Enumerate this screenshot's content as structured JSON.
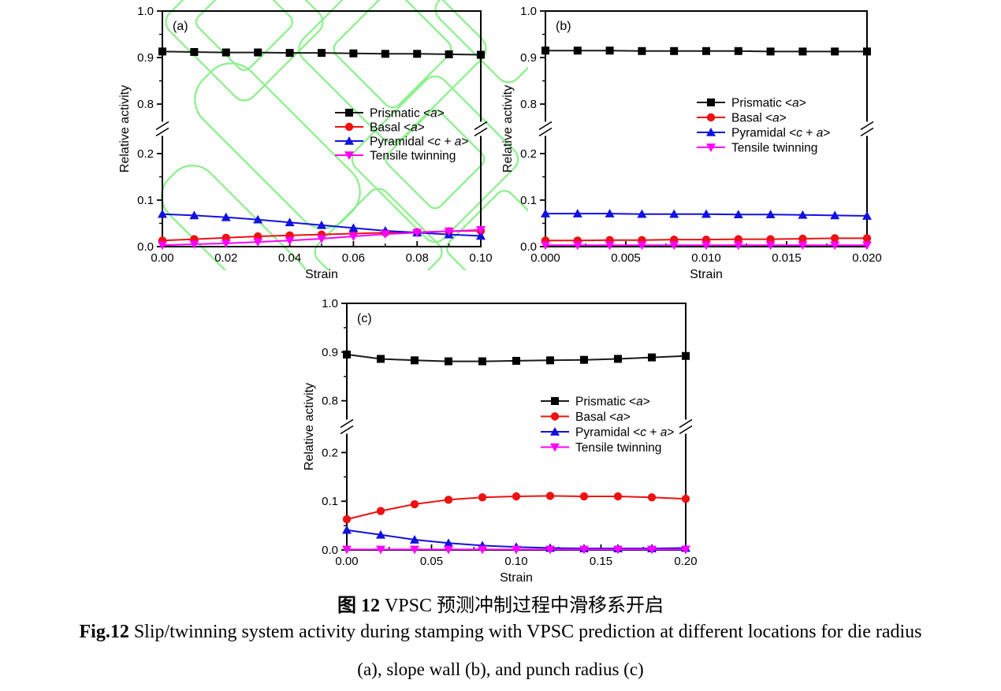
{
  "figure": {
    "caption_cn_bold": "图 12",
    "caption_cn_text": " VPSC 预测冲制过程中滑移系开启",
    "caption_en_bold": "Fig.12",
    "caption_en_text": " Slip/twinning system activity during stamping with VPSC prediction at different locations for die radius",
    "caption_en_line2": "(a), slope wall (b), and punch radius (c)"
  },
  "colors": {
    "axis": "#000000",
    "prismatic": "#1a1a1a",
    "basal": "#ee1111",
    "pyramidal": "#1111e0",
    "twinning": "#ff00ff",
    "watermark": "#8cee8c"
  },
  "chart_data": [
    {
      "id": "a",
      "type": "line",
      "panel_label": "(a)",
      "xlabel": "Strain",
      "ylabel": "Relative activity",
      "xlim": [
        0,
        0.1
      ],
      "axis_break": {
        "segments": [
          [
            0,
            0.2
          ],
          [
            0.8,
            1.0
          ]
        ]
      },
      "x_ticks": [
        {
          "v": 0.0,
          "label": "0.00"
        },
        {
          "v": 0.02,
          "label": "0.02"
        },
        {
          "v": 0.04,
          "label": "0.04"
        },
        {
          "v": 0.06,
          "label": "0.06"
        },
        {
          "v": 0.08,
          "label": "0.08"
        },
        {
          "v": 0.1,
          "label": "0.10"
        }
      ],
      "x_minor": [
        0.01,
        0.03,
        0.05,
        0.07,
        0.09
      ],
      "y_ticks": [
        {
          "v": 0.0,
          "label": "0.0"
        },
        {
          "v": 0.1,
          "label": "0.1"
        },
        {
          "v": 0.2,
          "label": "0.2"
        },
        {
          "v": 0.8,
          "label": "0.8"
        },
        {
          "v": 0.9,
          "label": "0.9"
        },
        {
          "v": 1.0,
          "label": "1.0"
        }
      ],
      "y_minor": [
        0.05,
        0.15,
        0.85,
        0.95
      ],
      "x": [
        0,
        0.01,
        0.02,
        0.03,
        0.04,
        0.05,
        0.06,
        0.07,
        0.08,
        0.09,
        0.1
      ],
      "series": [
        {
          "name": "Prismatic <a>",
          "marker": "square",
          "color": "#1a1a1a",
          "values": [
            0.913,
            0.912,
            0.911,
            0.911,
            0.91,
            0.91,
            0.909,
            0.908,
            0.908,
            0.907,
            0.906
          ]
        },
        {
          "name": "Basal <a>",
          "marker": "circle",
          "color": "#ee1111",
          "values": [
            0.013,
            0.016,
            0.019,
            0.022,
            0.024,
            0.026,
            0.028,
            0.03,
            0.031,
            0.033,
            0.034
          ]
        },
        {
          "name": "Pyramidal <c + a>",
          "marker": "triangle-up",
          "color": "#1111e0",
          "values": [
            0.07,
            0.067,
            0.063,
            0.058,
            0.052,
            0.046,
            0.04,
            0.034,
            0.03,
            0.026,
            0.023
          ]
        },
        {
          "name": "Tensile twinning",
          "marker": "triangle-down",
          "color": "#ff00ff",
          "values": [
            0.003,
            0.005,
            0.007,
            0.01,
            0.013,
            0.017,
            0.022,
            0.027,
            0.03,
            0.033,
            0.036
          ]
        }
      ]
    },
    {
      "id": "b",
      "type": "line",
      "panel_label": "(b)",
      "xlabel": "Strain",
      "ylabel": "Relative activity",
      "xlim": [
        0,
        0.02
      ],
      "axis_break": {
        "segments": [
          [
            0,
            0.2
          ],
          [
            0.8,
            1.0
          ]
        ]
      },
      "x_ticks": [
        {
          "v": 0.0,
          "label": "0.000"
        },
        {
          "v": 0.005,
          "label": "0.005"
        },
        {
          "v": 0.01,
          "label": "0.010"
        },
        {
          "v": 0.015,
          "label": "0.015"
        },
        {
          "v": 0.02,
          "label": "0.020"
        }
      ],
      "x_minor": [
        0.0025,
        0.0075,
        0.0125,
        0.0175
      ],
      "y_ticks": [
        {
          "v": 0.0,
          "label": "0.0"
        },
        {
          "v": 0.1,
          "label": "0.1"
        },
        {
          "v": 0.2,
          "label": "0.2"
        },
        {
          "v": 0.8,
          "label": "0.8"
        },
        {
          "v": 0.9,
          "label": "0.9"
        },
        {
          "v": 1.0,
          "label": "1.0"
        }
      ],
      "y_minor": [
        0.05,
        0.15,
        0.85,
        0.95
      ],
      "x": [
        0,
        0.002,
        0.004,
        0.006,
        0.008,
        0.01,
        0.012,
        0.014,
        0.016,
        0.018,
        0.02
      ],
      "series": [
        {
          "name": "Prismatic <a>",
          "marker": "square",
          "color": "#1a1a1a",
          "values": [
            0.915,
            0.915,
            0.915,
            0.914,
            0.914,
            0.914,
            0.914,
            0.913,
            0.913,
            0.913,
            0.913
          ]
        },
        {
          "name": "Basal <a>",
          "marker": "circle",
          "color": "#ee1111",
          "values": [
            0.013,
            0.013,
            0.014,
            0.014,
            0.015,
            0.015,
            0.016,
            0.016,
            0.017,
            0.018,
            0.018
          ]
        },
        {
          "name": "Pyramidal <c + a>",
          "marker": "triangle-up",
          "color": "#1111e0",
          "values": [
            0.071,
            0.071,
            0.071,
            0.07,
            0.07,
            0.07,
            0.069,
            0.069,
            0.068,
            0.067,
            0.066
          ]
        },
        {
          "name": "Tensile twinning",
          "marker": "triangle-down",
          "color": "#ff00ff",
          "values": [
            0.003,
            0.003,
            0.003,
            0.003,
            0.003,
            0.003,
            0.003,
            0.003,
            0.003,
            0.003,
            0.003
          ]
        }
      ]
    },
    {
      "id": "c",
      "type": "line",
      "panel_label": "(c)",
      "xlabel": "Strain",
      "ylabel": "Relative activity",
      "xlim": [
        0,
        0.2
      ],
      "axis_break": {
        "segments": [
          [
            0,
            0.2
          ],
          [
            0.8,
            1.0
          ]
        ]
      },
      "x_ticks": [
        {
          "v": 0.0,
          "label": "0.00"
        },
        {
          "v": 0.05,
          "label": "0.05"
        },
        {
          "v": 0.1,
          "label": "0.10"
        },
        {
          "v": 0.15,
          "label": "0.15"
        },
        {
          "v": 0.2,
          "label": "0.20"
        }
      ],
      "x_minor": [
        0.025,
        0.075,
        0.125,
        0.175
      ],
      "y_ticks": [
        {
          "v": 0.0,
          "label": "0.0"
        },
        {
          "v": 0.1,
          "label": "0.1"
        },
        {
          "v": 0.2,
          "label": "0.2"
        },
        {
          "v": 0.8,
          "label": "0.8"
        },
        {
          "v": 0.9,
          "label": "0.9"
        },
        {
          "v": 1.0,
          "label": "1.0"
        }
      ],
      "y_minor": [
        0.05,
        0.15,
        0.85,
        0.95
      ],
      "x": [
        0,
        0.02,
        0.04,
        0.06,
        0.08,
        0.1,
        0.12,
        0.14,
        0.16,
        0.18,
        0.2
      ],
      "series": [
        {
          "name": "Prismatic <a>",
          "marker": "square",
          "color": "#1a1a1a",
          "values": [
            0.895,
            0.886,
            0.883,
            0.881,
            0.881,
            0.882,
            0.883,
            0.884,
            0.886,
            0.889,
            0.892
          ]
        },
        {
          "name": "Basal <a>",
          "marker": "circle",
          "color": "#ee1111",
          "values": [
            0.063,
            0.08,
            0.094,
            0.103,
            0.108,
            0.11,
            0.111,
            0.11,
            0.11,
            0.108,
            0.105
          ]
        },
        {
          "name": "Pyramidal <c + a>",
          "marker": "triangle-up",
          "color": "#1111e0",
          "values": [
            0.041,
            0.031,
            0.021,
            0.014,
            0.009,
            0.006,
            0.004,
            0.003,
            0.003,
            0.003,
            0.004
          ]
        },
        {
          "name": "Tensile twinning",
          "marker": "triangle-down",
          "color": "#ff00ff",
          "values": [
            0.001,
            0.001,
            0.001,
            0.001,
            0.001,
            0.001,
            0.001,
            0.001,
            0.001,
            0.001,
            0.001
          ]
        }
      ]
    }
  ]
}
